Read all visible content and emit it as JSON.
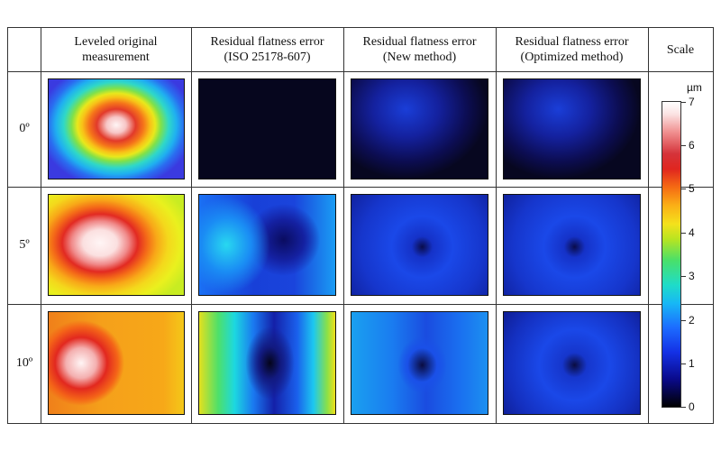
{
  "headers": {
    "col1": [
      "Leveled original",
      "measurement"
    ],
    "col2": [
      "Residual flatness error",
      "(ISO 25178-607)"
    ],
    "col3": [
      "Residual flatness error",
      "(New method)"
    ],
    "col4": [
      "Residual flatness error",
      "(Optimized method)"
    ],
    "scale": "Scale"
  },
  "rows": [
    "0º",
    "5º",
    "10º"
  ],
  "scale": {
    "unit": "µm",
    "ticks": [
      "0",
      "1",
      "2",
      "3",
      "4",
      "5",
      "6",
      "7"
    ]
  },
  "colors": {
    "dark": "#000000",
    "blue": "#1431e6",
    "cyan": "#1fdcc8",
    "yellow": "#f4e11c",
    "red": "#e0261f",
    "white": "#ffffff"
  }
}
